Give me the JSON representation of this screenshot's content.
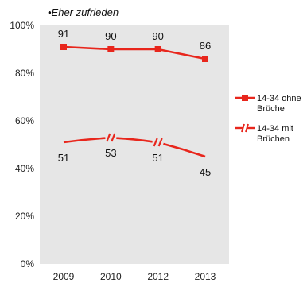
{
  "chart_data": {
    "type": "line",
    "subtitle": "•Eher zufrieden",
    "categories": [
      "2009",
      "2010",
      "2012",
      "2013"
    ],
    "ylim": [
      0,
      100
    ],
    "yticks": [
      0,
      20,
      40,
      60,
      80,
      100
    ],
    "ytick_labels": [
      "0%",
      "20%",
      "40%",
      "60%",
      "80%",
      "100%"
    ],
    "grid": false,
    "legend_position": "right",
    "plot_background": "#e6e6e6",
    "series": [
      {
        "name": "14-34 ohne Brüche",
        "legend_lines": [
          "14-34 ohne",
          "Brüche"
        ],
        "values": [
          91,
          90,
          90,
          86
        ],
        "labels": [
          "91",
          "90",
          "90",
          "86"
        ],
        "color": "#e8261c",
        "marker": "square",
        "line_style": "solid"
      },
      {
        "name": "14-34 mit Brüchen",
        "legend_lines": [
          "14-34 mit",
          "Brüchen"
        ],
        "values": [
          51,
          53,
          51,
          45
        ],
        "labels": [
          "51",
          "53",
          "51",
          "45"
        ],
        "color": "#e8261c",
        "marker": "break",
        "line_style": "broken"
      }
    ]
  }
}
